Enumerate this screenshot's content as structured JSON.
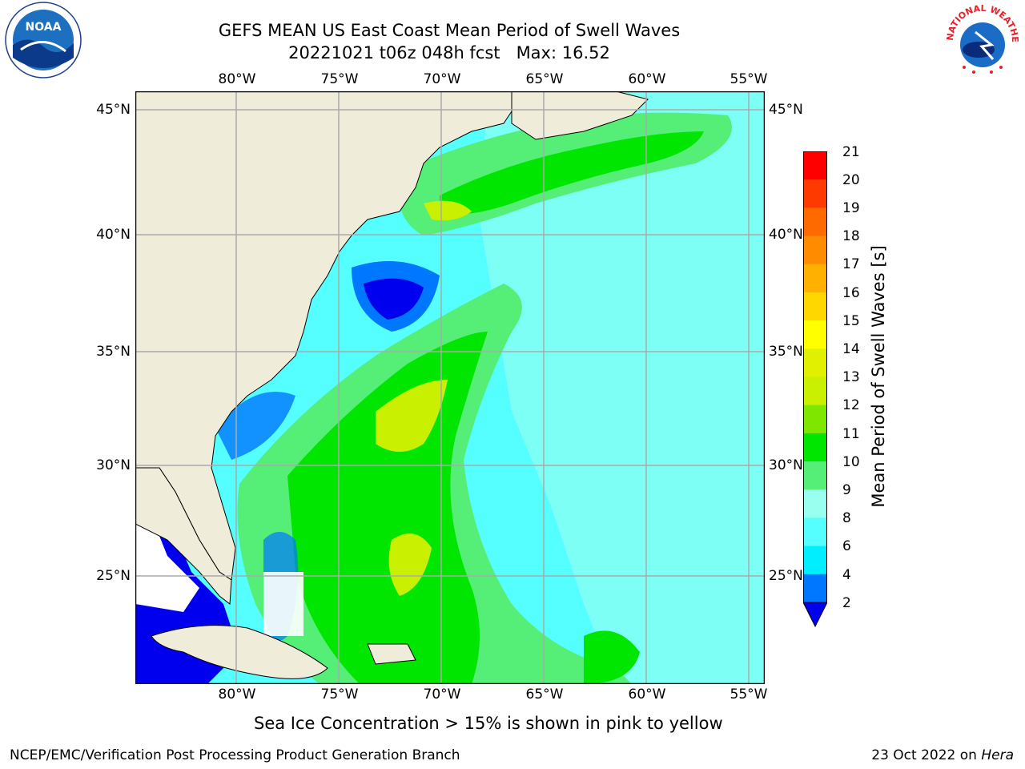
{
  "title_line1": "GEFS MEAN US East Coast Mean Period of Swell Waves",
  "title_line2": "20221021 t06z 048h fcst   Max: 16.52",
  "logos": {
    "left": "NOAA",
    "right_text": "NATIONAL WEATHER SERVICE"
  },
  "map": {
    "lon_ticks": [
      "80°W",
      "75°W",
      "70°W",
      "65°W",
      "60°W",
      "55°W"
    ],
    "lat_ticks": [
      "45°N",
      "40°N",
      "35°N",
      "30°N",
      "25°N"
    ],
    "land_color": "#efedda",
    "ocean_base_color": "#55ffff"
  },
  "colorbar": {
    "label": "Mean Period of Swell Waves [s]",
    "ticks": [
      "21",
      "20",
      "19",
      "18",
      "17",
      "16",
      "15",
      "14",
      "13",
      "12",
      "11",
      "10",
      "9",
      "8",
      "6",
      "4",
      "2"
    ],
    "colors": [
      "#ff0000",
      "#ff3a00",
      "#ff6a00",
      "#ff8c00",
      "#ffb000",
      "#ffd700",
      "#ffff00",
      "#e0f000",
      "#c8f000",
      "#7fe600",
      "#00e600",
      "#55ee77",
      "#99ffee",
      "#55ffff",
      "#00eeff",
      "#0077ff",
      "#0000ee"
    ]
  },
  "sea_ice_note": "Sea Ice Concentration > 15% is shown in pink to yellow",
  "footer_left": "NCEP/EMC/Verification Post Processing Product Generation Branch",
  "footer_right_date": "23 Oct 2022 on ",
  "footer_right_host": "Hera"
}
